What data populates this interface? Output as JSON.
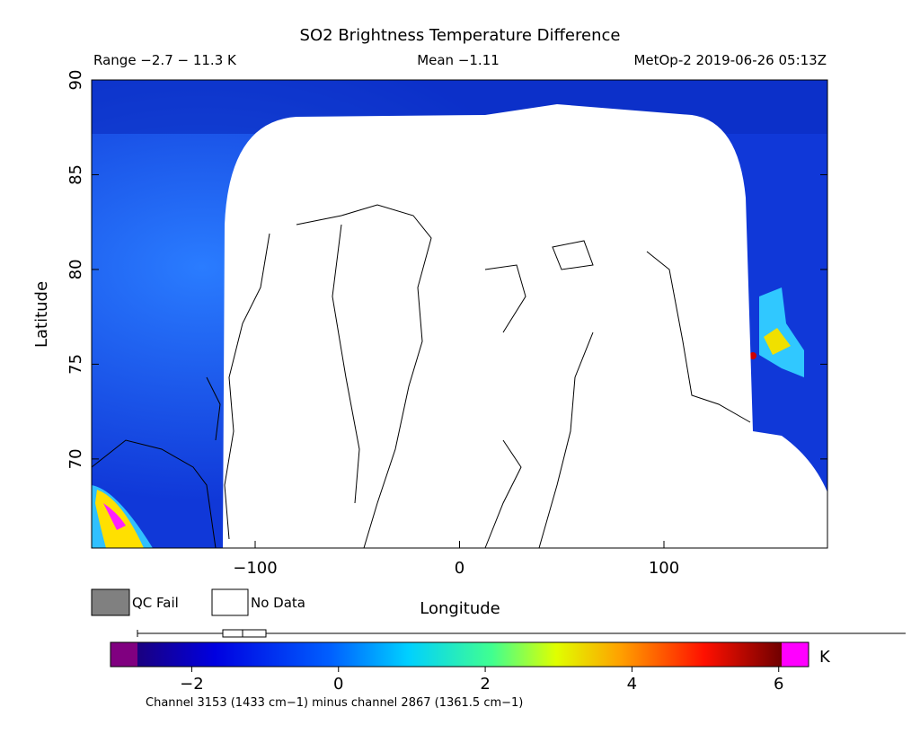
{
  "header": {
    "title": "SO2 Brightness Temperature Difference",
    "range": "Range −2.7 − 11.3 K",
    "mean": "Mean −1.11",
    "satellite": "MetOp-2 2019-06-26 05:13Z"
  },
  "map": {
    "x_label": "Longitude",
    "y_label": "Latitude",
    "xlim": [
      -180,
      180
    ],
    "ylim": [
      65.3,
      90
    ],
    "xticks": [
      {
        "value": -100,
        "label": "−100"
      },
      0,
      100
    ],
    "yticks": [
      70,
      75,
      80,
      85,
      90
    ]
  },
  "legend": {
    "qc_fail": "QC Fail",
    "no_data": "No Data"
  },
  "colorbar": {
    "lim": [
      -2.74,
      6.04
    ],
    "ticks": [
      {
        "value": -2,
        "label": "−2"
      },
      0,
      2,
      4,
      6
    ],
    "unit": "K"
  },
  "footnote": "Channel 3153 (1433 cm−1) minus channel 2867 (1361.5 cm−1)"
}
